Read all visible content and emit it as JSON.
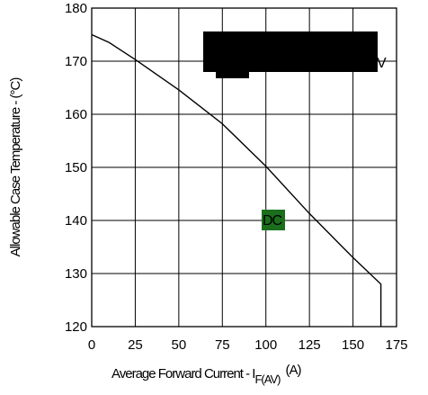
{
  "chart_data": {
    "type": "line",
    "title": "",
    "xlabel": "Average Forward Current - I",
    "xlabel_subscript": "F(AV)",
    "xlabel_unit": "(A)",
    "ylabel": "Allowable Case Temperature - (°C)",
    "xlim": [
      0,
      175
    ],
    "ylim": [
      120,
      180
    ],
    "x_ticks": [
      "0",
      "25",
      "50",
      "75",
      "100",
      "125",
      "150",
      "175"
    ],
    "y_ticks": [
      "120",
      "130",
      "140",
      "150",
      "160",
      "170",
      "180"
    ],
    "grid": true,
    "series": [
      {
        "name": "DC",
        "x": [
          0,
          10,
          25,
          50,
          75,
          100,
          125,
          150,
          166,
          166
        ],
        "y": [
          175,
          173.5,
          170.3,
          164.6,
          158.2,
          150.2,
          141.3,
          133,
          128,
          120
        ]
      }
    ],
    "annotations": [
      {
        "text": "DC"
      },
      {
        "text": "V"
      }
    ],
    "colors": {
      "redaction": "#000000",
      "dc_marker": "#1b6e1b",
      "line": "#000000"
    }
  }
}
